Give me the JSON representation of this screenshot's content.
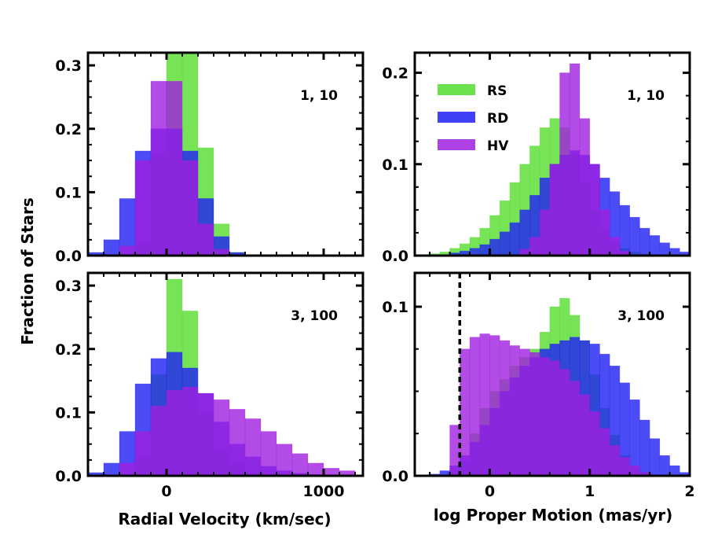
{
  "figure": {
    "ylabel": "Fraction of Stars",
    "xlabel_left": "Radial Velocity (km/sec)",
    "xlabel_right": "log Proper Motion (mas/yr)"
  },
  "legend": [
    {
      "name": "RS",
      "color": "#55dd2e"
    },
    {
      "name": "RD",
      "color": "#1f1ff5"
    },
    {
      "name": "HV",
      "color": "#a01fe0"
    }
  ],
  "chart_data": [
    {
      "type": "bar",
      "panel": "top-left",
      "annotation": "1, 10",
      "xlabel": "",
      "ylabel": "Fraction of Stars",
      "xlim": [
        -500,
        1250
      ],
      "ylim": [
        0,
        0.32
      ],
      "xticks": [],
      "yticks": [
        0.0,
        0.1,
        0.2,
        0.3
      ],
      "ytick_labels": [
        "0.0",
        "0.1",
        "0.2",
        "0.3"
      ],
      "bin_edges": [
        -500,
        -400,
        -300,
        -200,
        -100,
        0,
        100,
        200,
        300,
        400,
        500,
        600,
        700,
        800,
        900,
        1000,
        1100,
        1200
      ],
      "series": [
        {
          "name": "RS",
          "values": [
            0,
            0,
            0,
            0.02,
            0.16,
            0.32,
            0.32,
            0.17,
            0.05,
            0.005,
            0,
            0,
            0,
            0,
            0,
            0,
            0
          ]
        },
        {
          "name": "RD",
          "values": [
            0.005,
            0.025,
            0.09,
            0.165,
            0.2,
            0.2,
            0.165,
            0.09,
            0.03,
            0.005,
            0,
            0,
            0,
            0,
            0,
            0,
            0
          ]
        },
        {
          "name": "HV",
          "values": [
            0,
            0,
            0.015,
            0.15,
            0.275,
            0.275,
            0.15,
            0.05,
            0.01,
            0,
            0,
            0,
            0,
            0,
            0,
            0,
            0
          ]
        }
      ]
    },
    {
      "type": "bar",
      "panel": "top-right",
      "annotation": "1, 10",
      "xlabel": "",
      "ylabel": "",
      "xlim": [
        -0.75,
        2.0
      ],
      "ylim": [
        0,
        0.222
      ],
      "xticks": [],
      "yticks": [
        0.0,
        0.1,
        0.2
      ],
      "ytick_labels": [
        "0.0",
        "0.1",
        "0.2"
      ],
      "bin_edges": [
        -0.6,
        -0.5,
        -0.4,
        -0.3,
        -0.2,
        -0.1,
        0.0,
        0.1,
        0.2,
        0.3,
        0.4,
        0.5,
        0.6,
        0.7,
        0.8,
        0.9,
        1.0,
        1.1,
        1.2,
        1.3,
        1.4,
        1.5,
        1.6,
        1.7,
        1.8,
        1.9,
        2.0
      ],
      "series": [
        {
          "name": "RS",
          "values": [
            0.002,
            0.004,
            0.008,
            0.013,
            0.02,
            0.03,
            0.044,
            0.06,
            0.08,
            0.1,
            0.12,
            0.14,
            0.15,
            0.14,
            0.11,
            0.08,
            0.05,
            0.03,
            0.015,
            0.008,
            0.004,
            0.002,
            0.001,
            0.0005,
            0,
            0
          ]
        },
        {
          "name": "RD",
          "values": [
            0,
            0.001,
            0.003,
            0.005,
            0.008,
            0.012,
            0.018,
            0.026,
            0.036,
            0.05,
            0.066,
            0.085,
            0.1,
            0.11,
            0.115,
            0.11,
            0.1,
            0.085,
            0.07,
            0.055,
            0.042,
            0.03,
            0.022,
            0.014,
            0.008,
            0.004
          ]
        },
        {
          "name": "HV",
          "values": [
            0,
            0,
            0,
            0,
            0,
            0,
            0,
            0,
            0,
            0.007,
            0.02,
            0.05,
            0.1,
            0.2,
            0.21,
            0.15,
            0.1,
            0.05,
            0.02,
            0.005,
            0,
            0,
            0,
            0,
            0,
            0
          ]
        }
      ]
    },
    {
      "type": "bar",
      "panel": "bottom-left",
      "annotation": "3, 100",
      "xlabel": "Radial Velocity (km/sec)",
      "ylabel": "Fraction of Stars",
      "xlim": [
        -500,
        1250
      ],
      "ylim": [
        0,
        0.32
      ],
      "xticks": [
        0,
        1000
      ],
      "xtick_labels": [
        "0",
        "1000"
      ],
      "yticks": [
        0.0,
        0.1,
        0.2,
        0.3
      ],
      "ytick_labels": [
        "0.0",
        "0.1",
        "0.2",
        "0.3"
      ],
      "bin_edges": [
        -500,
        -400,
        -300,
        -200,
        -100,
        0,
        100,
        200,
        300,
        400,
        500,
        600,
        700,
        800,
        900,
        1000,
        1100,
        1200
      ],
      "series": [
        {
          "name": "RS",
          "values": [
            0,
            0,
            0,
            0.03,
            0.16,
            0.31,
            0.26,
            0.1,
            0.04,
            0.02,
            0.005,
            0,
            0,
            0,
            0,
            0,
            0
          ]
        },
        {
          "name": "RD",
          "values": [
            0.005,
            0.02,
            0.07,
            0.145,
            0.185,
            0.195,
            0.17,
            0.13,
            0.085,
            0.05,
            0.03,
            0.015,
            0.008,
            0.004,
            0.002,
            0,
            0
          ]
        },
        {
          "name": "HV",
          "values": [
            0,
            0,
            0.02,
            0.07,
            0.11,
            0.135,
            0.14,
            0.13,
            0.12,
            0.105,
            0.09,
            0.07,
            0.05,
            0.035,
            0.02,
            0.012,
            0.008
          ]
        }
      ]
    },
    {
      "type": "bar",
      "panel": "bottom-right",
      "annotation": "3, 100",
      "xlabel": "log Proper Motion (mas/yr)",
      "ylabel": "",
      "xlim": [
        -0.75,
        2.0
      ],
      "ylim": [
        0,
        0.12
      ],
      "xticks": [
        0,
        1,
        2
      ],
      "xtick_labels": [
        "0",
        "1",
        "2"
      ],
      "yticks": [
        0.0,
        0.1
      ],
      "ytick_labels": [
        "0.0",
        "0.1"
      ],
      "vline": -0.3,
      "bin_edges": [
        -0.6,
        -0.5,
        -0.4,
        -0.3,
        -0.2,
        -0.1,
        0.0,
        0.1,
        0.2,
        0.3,
        0.4,
        0.5,
        0.6,
        0.7,
        0.8,
        0.9,
        1.0,
        1.1,
        1.2,
        1.3,
        1.4,
        1.5,
        1.6,
        1.7,
        1.8,
        1.9,
        2.0
      ],
      "series": [
        {
          "name": "RS",
          "values": [
            0,
            0,
            0,
            0.008,
            0.025,
            0.04,
            0.05,
            0.057,
            0.065,
            0.07,
            0.075,
            0.085,
            0.1,
            0.105,
            0.095,
            0.08,
            0.06,
            0.04,
            0.024,
            0.012,
            0.005,
            0.002,
            0,
            0,
            0,
            0
          ]
        },
        {
          "name": "RD",
          "values": [
            0.001,
            0.003,
            0.006,
            0.012,
            0.02,
            0.03,
            0.04,
            0.05,
            0.058,
            0.065,
            0.07,
            0.075,
            0.078,
            0.08,
            0.082,
            0.08,
            0.078,
            0.072,
            0.065,
            0.055,
            0.045,
            0.033,
            0.022,
            0.012,
            0.006,
            0.002
          ]
        },
        {
          "name": "HV",
          "values": [
            0,
            0,
            0.03,
            0.075,
            0.082,
            0.084,
            0.083,
            0.08,
            0.077,
            0.075,
            0.073,
            0.07,
            0.068,
            0.063,
            0.056,
            0.048,
            0.038,
            0.028,
            0.018,
            0.011,
            0.006,
            0.002,
            0,
            0,
            0,
            0
          ]
        }
      ]
    }
  ]
}
